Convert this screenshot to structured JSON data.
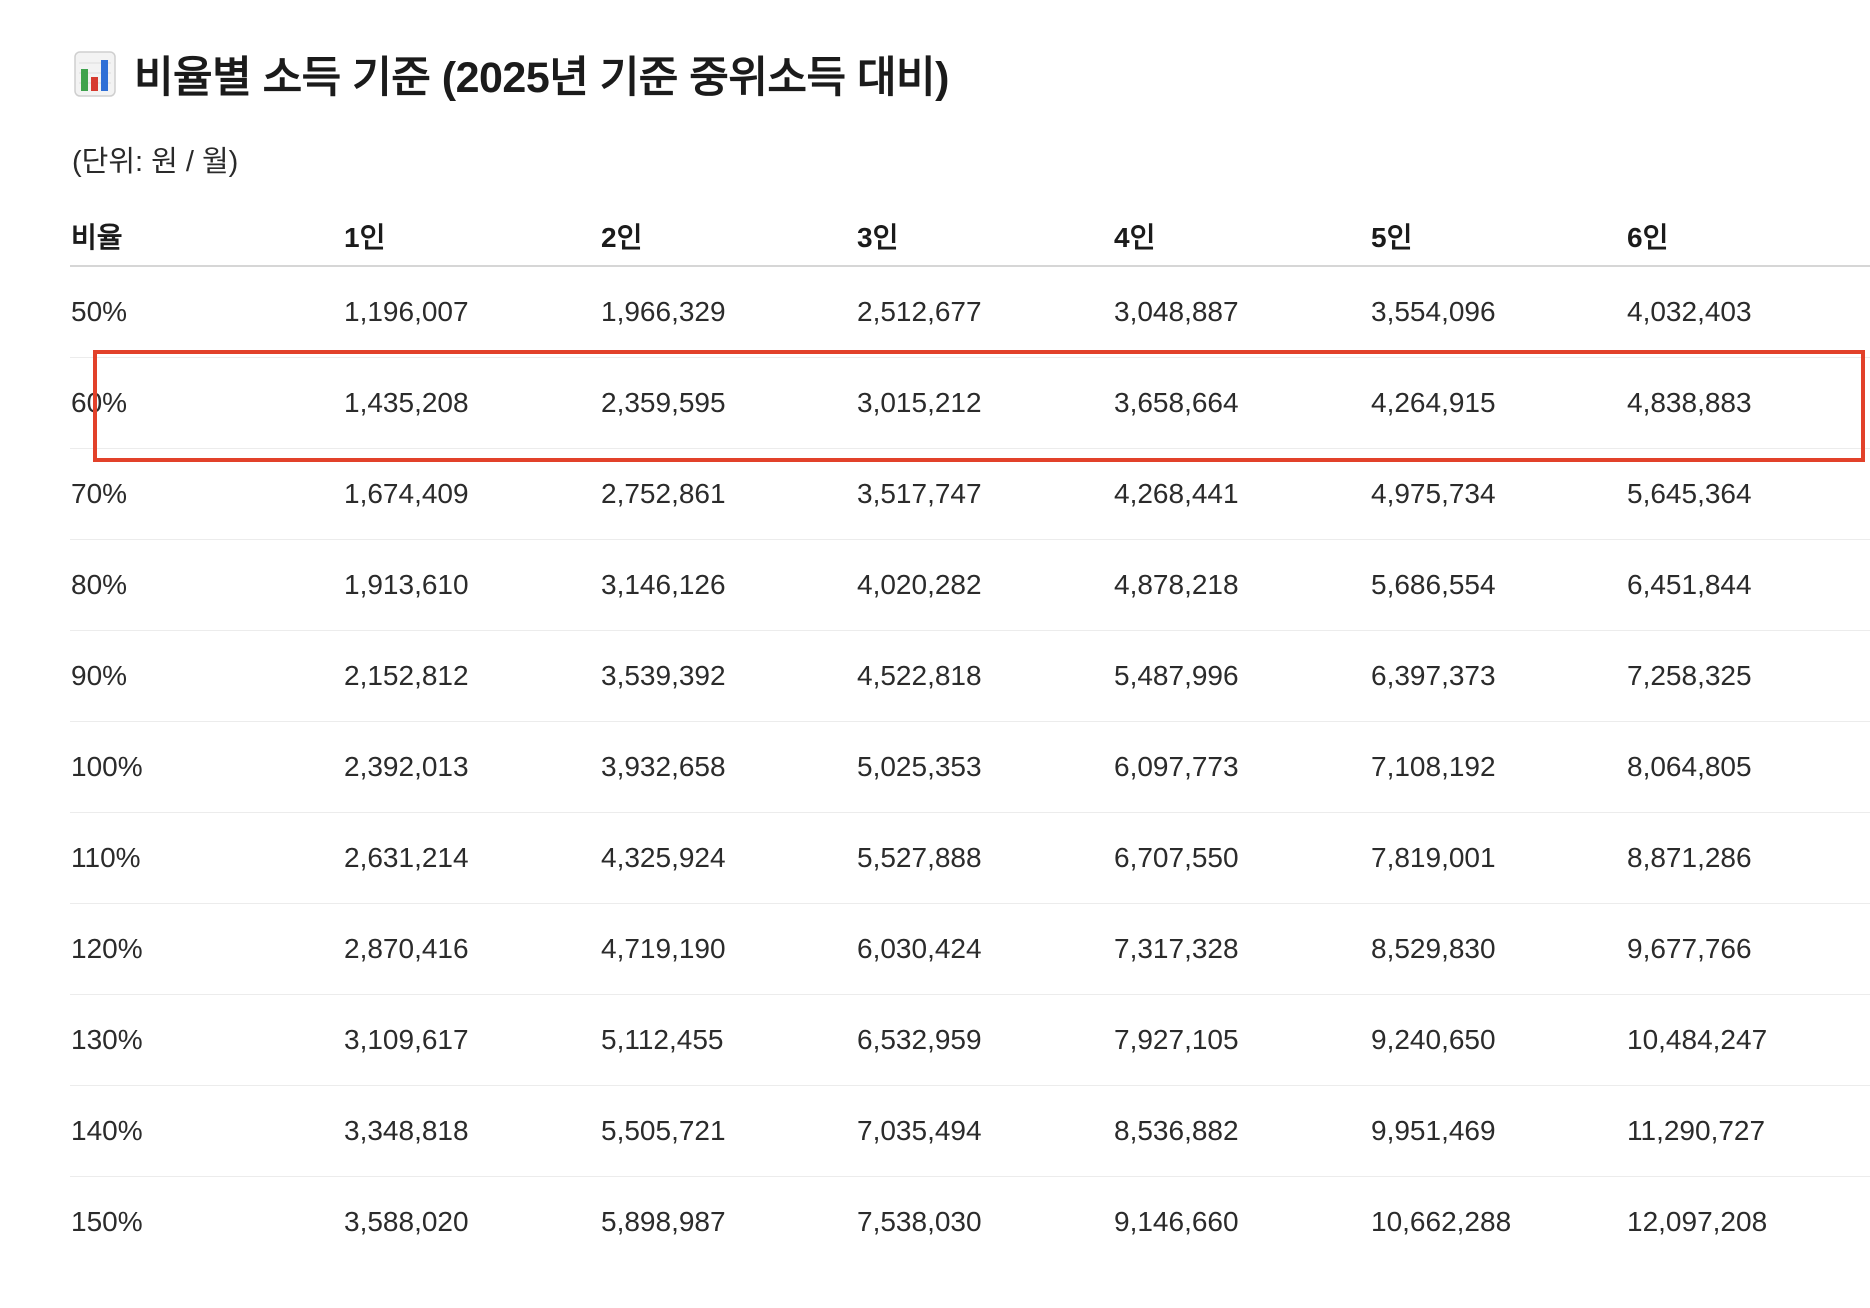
{
  "title": {
    "icon": "bar-chart-icon",
    "text": "비율별 소득 기준 (2025년 기준 중위소득 대비)"
  },
  "unit_note": "(단위: 원 / 월)",
  "table": {
    "headers": [
      "비율",
      "1인",
      "2인",
      "3인",
      "4인",
      "5인",
      "6인"
    ],
    "rows": [
      [
        "50%",
        "1,196,007",
        "1,966,329",
        "2,512,677",
        "3,048,887",
        "3,554,096",
        "4,032,403"
      ],
      [
        "60%",
        "1,435,208",
        "2,359,595",
        "3,015,212",
        "3,658,664",
        "4,264,915",
        "4,838,883"
      ],
      [
        "70%",
        "1,674,409",
        "2,752,861",
        "3,517,747",
        "4,268,441",
        "4,975,734",
        "5,645,364"
      ],
      [
        "80%",
        "1,913,610",
        "3,146,126",
        "4,020,282",
        "4,878,218",
        "5,686,554",
        "6,451,844"
      ],
      [
        "90%",
        "2,152,812",
        "3,539,392",
        "4,522,818",
        "5,487,996",
        "6,397,373",
        "7,258,325"
      ],
      [
        "100%",
        "2,392,013",
        "3,932,658",
        "5,025,353",
        "6,097,773",
        "7,108,192",
        "8,064,805"
      ],
      [
        "110%",
        "2,631,214",
        "4,325,924",
        "5,527,888",
        "6,707,550",
        "7,819,001",
        "8,871,286"
      ],
      [
        "120%",
        "2,870,416",
        "4,719,190",
        "6,030,424",
        "7,317,328",
        "8,529,830",
        "9,677,766"
      ],
      [
        "130%",
        "3,109,617",
        "5,112,455",
        "6,532,959",
        "7,927,105",
        "9,240,650",
        "10,484,247"
      ],
      [
        "140%",
        "3,348,818",
        "5,505,721",
        "7,035,494",
        "8,536,882",
        "9,951,469",
        "11,290,727"
      ],
      [
        "150%",
        "3,588,020",
        "5,898,987",
        "7,538,030",
        "9,146,660",
        "10,662,288",
        "12,097,208"
      ]
    ],
    "highlighted_row": "60%"
  },
  "colors": {
    "highlight_border": "#e2412a",
    "icon_bar_green": "#3fa34d",
    "icon_bar_red": "#d63a2f",
    "icon_bar_blue": "#2f6fd6"
  }
}
